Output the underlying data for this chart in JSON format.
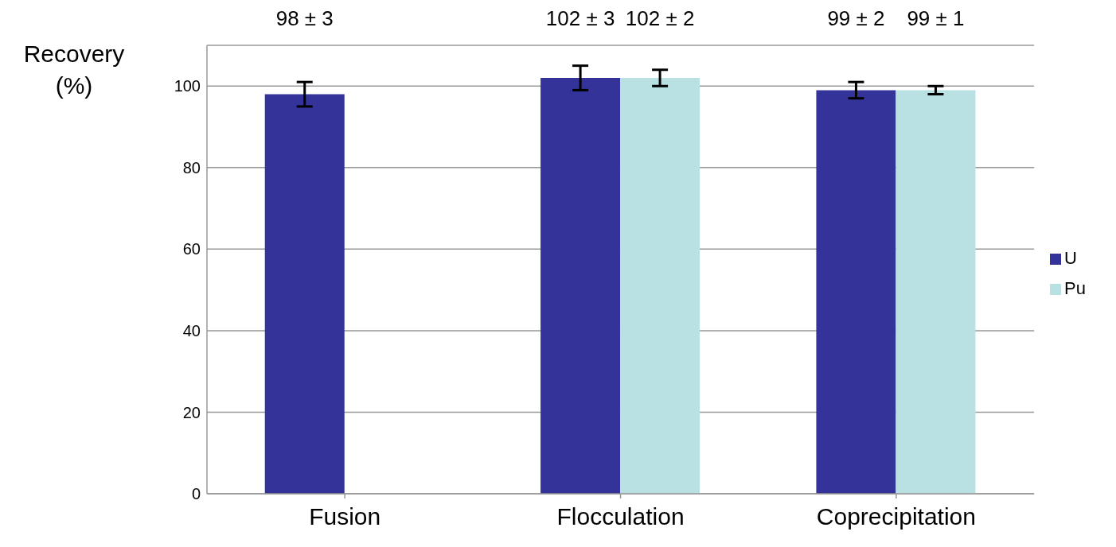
{
  "chart_data": {
    "type": "bar",
    "ylabel": "Recovery (%)",
    "categories": [
      "Fusion",
      "Flocculation",
      "Coprecipitation"
    ],
    "series": [
      {
        "name": "U",
        "color": "#333399",
        "values": [
          98,
          102,
          99
        ],
        "errors": [
          3,
          3,
          2
        ],
        "value_labels": [
          "98 ± 3",
          "102 ± 3",
          "99 ± 2"
        ]
      },
      {
        "name": "Pu",
        "color": "#b9e0e2",
        "values": [
          null,
          102,
          99
        ],
        "errors": [
          null,
          2,
          1
        ],
        "value_labels": [
          null,
          "102 ± 2",
          "99 ± 1"
        ]
      }
    ],
    "ylim": [
      0,
      110
    ],
    "yticks": [
      0,
      20,
      40,
      60,
      80,
      100
    ],
    "grid": "y",
    "legend": "right"
  }
}
